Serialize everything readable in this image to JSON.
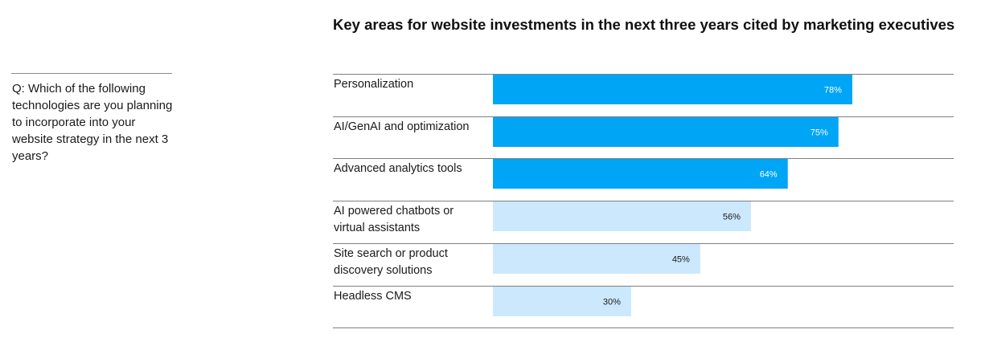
{
  "question": "Q: Which of the following technologies are you planning to incorporate into your website strategy in the next 3 years?",
  "chart_data": {
    "type": "bar",
    "orientation": "horizontal",
    "title": "Key areas for website investments in the next three years cited by marketing executives",
    "categories": [
      "Personalization",
      "AI/GenAI and optimization",
      "Advanced analytics tools",
      "AI powered chatbots or virtual assistants",
      "Site search or product discovery solutions",
      "Headless CMS"
    ],
    "values": [
      78,
      75,
      64,
      56,
      45,
      30
    ],
    "value_labels": [
      "78%",
      "75%",
      "64%",
      "56%",
      "45%",
      "30%"
    ],
    "highlighted": [
      true,
      true,
      true,
      false,
      false,
      false
    ],
    "xlim": [
      0,
      100
    ],
    "grid": false,
    "colors": {
      "highlight": "#00A5F5",
      "muted": "#CBE8FD",
      "highlight_text": "#ffffff",
      "muted_text": "#1a1a1a",
      "rule": "#7f7f7f"
    }
  }
}
